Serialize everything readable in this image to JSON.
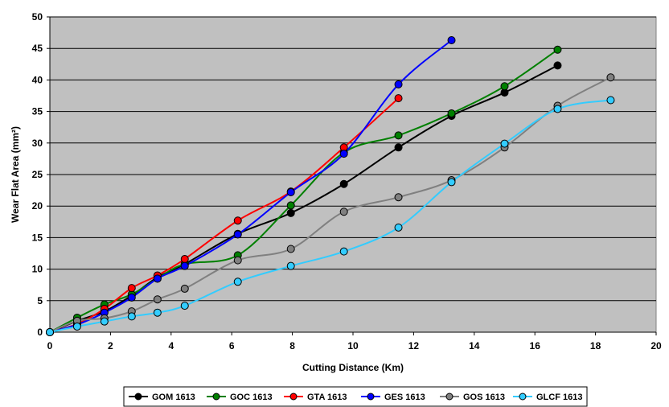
{
  "chart_data": {
    "type": "line",
    "xlabel": "Cutting Distance (Km)",
    "ylabel": "Wear Flat Area (mm²)",
    "xlim": [
      0,
      20
    ],
    "ylim": [
      0,
      50
    ],
    "x_ticks": [
      "0",
      "2",
      "4",
      "6",
      "8",
      "10",
      "12",
      "14",
      "16",
      "18",
      "20"
    ],
    "y_ticks": [
      "0",
      "5",
      "10",
      "15",
      "20",
      "25",
      "30",
      "35",
      "40",
      "45",
      "50"
    ],
    "grid": "horizontal",
    "plot_background": "#c0c0c0",
    "legend_position": "bottom",
    "series": [
      {
        "name": "GOM 1613",
        "color": "#000000",
        "x": [
          0,
          0.9,
          1.8,
          2.7,
          3.55,
          4.45,
          6.2,
          7.95,
          9.7,
          11.5,
          13.25,
          15.0,
          16.75
        ],
        "y": [
          0,
          1.8,
          3.3,
          5.8,
          8.7,
          10.8,
          15.6,
          18.9,
          23.5,
          29.3,
          34.3,
          38.0,
          42.3
        ]
      },
      {
        "name": "GOC 1613",
        "color": "#008000",
        "x": [
          0,
          0.9,
          1.8,
          2.7,
          3.55,
          4.45,
          6.2,
          7.95,
          9.7,
          11.5,
          13.25,
          15.0,
          16.75
        ],
        "y": [
          0,
          2.3,
          4.4,
          6.0,
          8.5,
          10.8,
          12.2,
          20.1,
          28.5,
          31.2,
          34.7,
          39.0,
          44.8
        ]
      },
      {
        "name": "GTA 1613",
        "color": "#ff0000",
        "x": [
          0,
          0.9,
          1.8,
          2.7,
          3.55,
          4.45,
          6.2,
          7.95,
          9.7,
          11.5
        ],
        "y": [
          0,
          1.3,
          3.7,
          7.0,
          9.0,
          11.6,
          17.7,
          22.3,
          29.3,
          37.1
        ]
      },
      {
        "name": "GES 1613",
        "color": "#0000ff",
        "x": [
          0,
          0.9,
          1.8,
          2.7,
          3.55,
          4.45,
          6.2,
          7.95,
          9.7,
          11.5,
          13.25
        ],
        "y": [
          0,
          1.2,
          3.1,
          5.5,
          8.5,
          10.5,
          15.5,
          22.2,
          28.3,
          39.3,
          46.3
        ]
      },
      {
        "name": "GOS 1613",
        "color": "#808080",
        "x": [
          0,
          0.9,
          1.8,
          2.7,
          3.55,
          4.45,
          6.2,
          7.95,
          9.7,
          11.5,
          13.25,
          15.0,
          16.75,
          18.5
        ],
        "y": [
          0,
          1.8,
          2.2,
          3.3,
          5.2,
          6.9,
          11.4,
          13.2,
          19.1,
          21.4,
          24.1,
          29.3,
          35.9,
          40.4
        ]
      },
      {
        "name": "GLCF 1613",
        "color": "#33ccff",
        "x": [
          0,
          0.9,
          1.8,
          2.7,
          3.55,
          4.45,
          6.2,
          7.95,
          9.7,
          11.5,
          13.25,
          15.0,
          16.75,
          18.5
        ],
        "y": [
          0,
          0.9,
          1.7,
          2.5,
          3.1,
          4.2,
          8.0,
          10.5,
          12.8,
          16.6,
          23.8,
          29.9,
          35.4,
          36.8
        ]
      }
    ]
  }
}
